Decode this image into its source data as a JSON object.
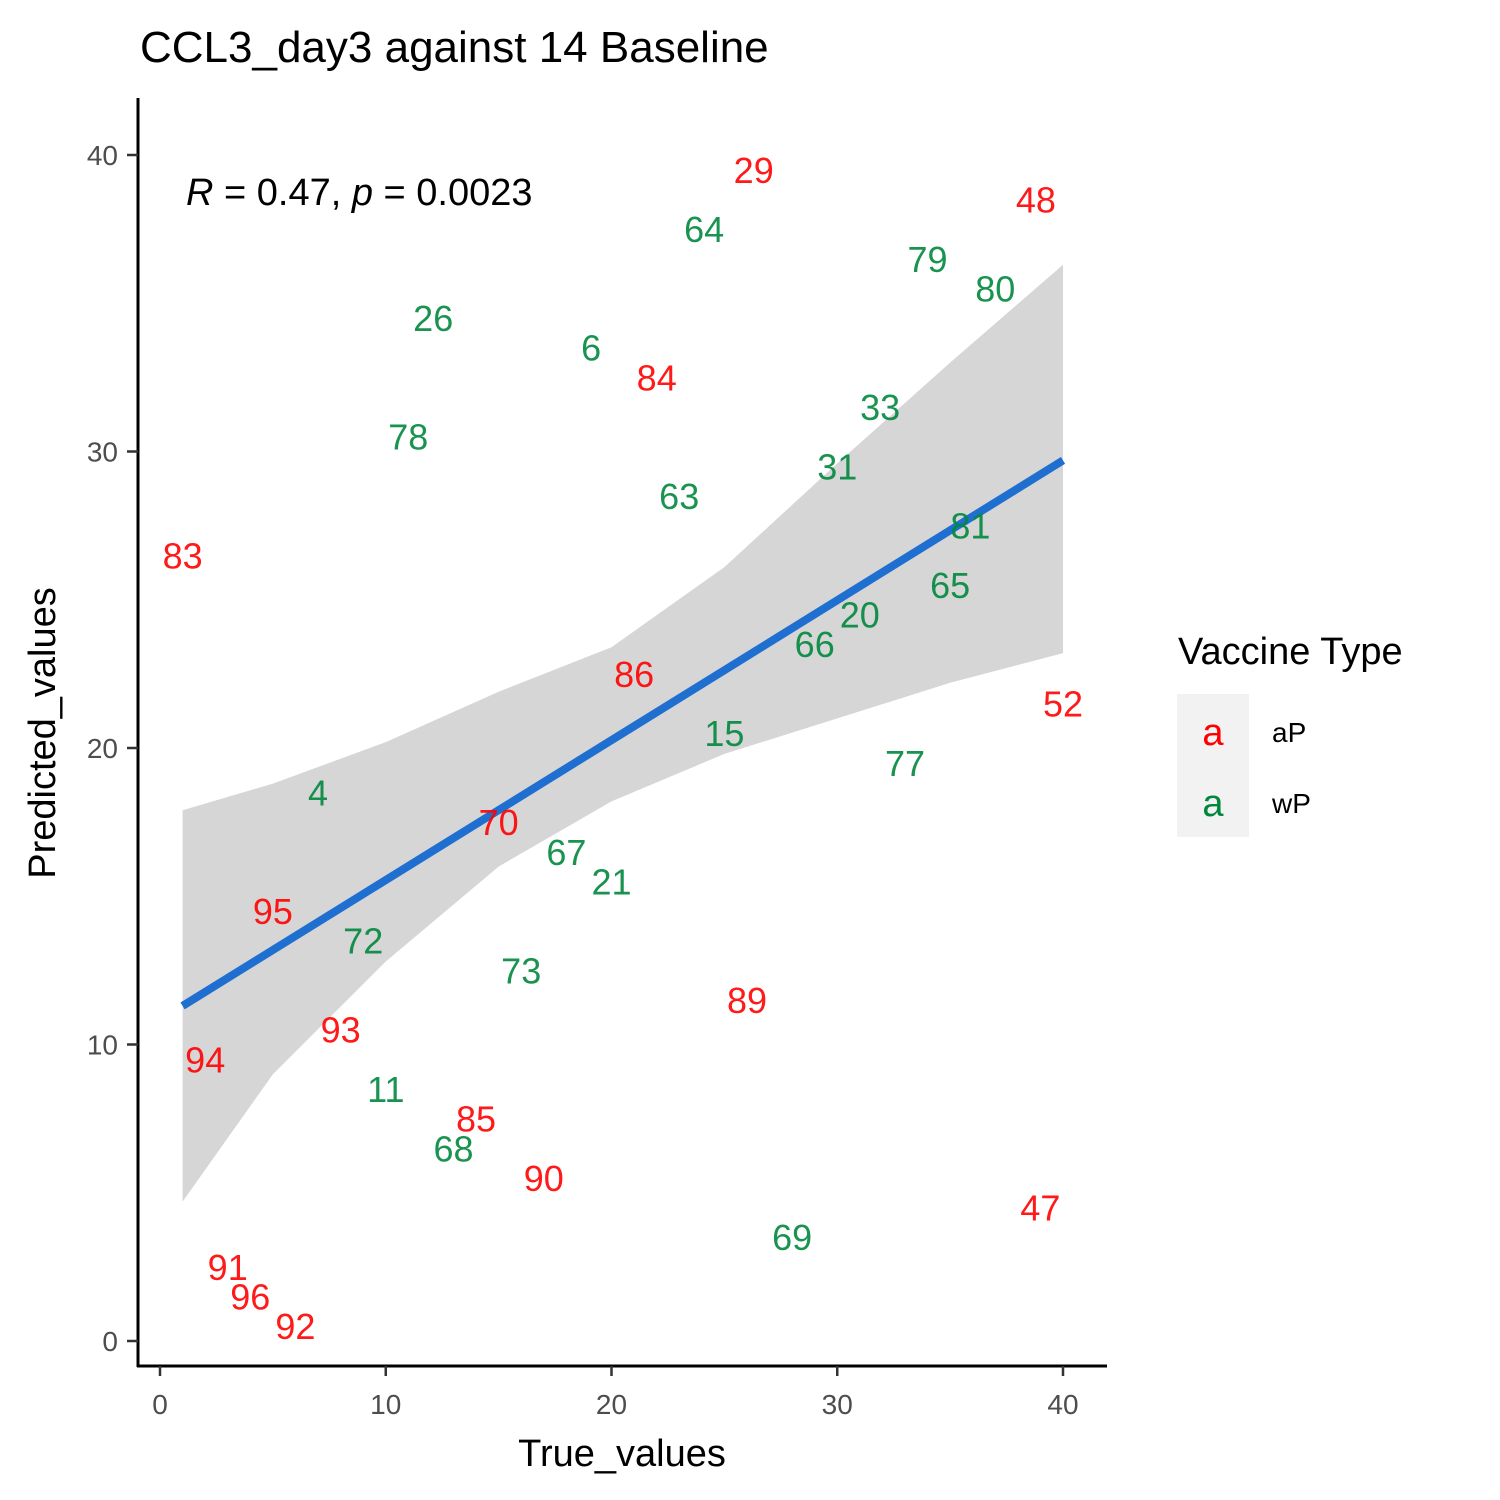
{
  "chart_data": {
    "type": "scatter",
    "title": "CCL3_day3 against 14 Baseline",
    "xlabel": "True_values",
    "ylabel": "Predicted_values",
    "xlim": [
      -1,
      42
    ],
    "ylim": [
      -1,
      42
    ],
    "xticks": [
      "0",
      "10",
      "20",
      "30",
      "40"
    ],
    "yticks": [
      "0",
      "10",
      "20",
      "30",
      "40"
    ],
    "stat_text": {
      "r_symbol": "R",
      "r_part": " = 0.47, ",
      "p_symbol": "p",
      "p_part": " = 0.0023"
    },
    "legend": {
      "title": "Vaccine Type",
      "position": "right",
      "key_glyph": "a",
      "entries": [
        {
          "label": "aP",
          "color": "#ff0000"
        },
        {
          "label": "wP",
          "color": "#00873c"
        }
      ]
    },
    "series_colors": {
      "aP": "#ff0000",
      "wP": "#00873c"
    },
    "regression": {
      "color": "#1f6fd1",
      "band_color": "#d6d6d6",
      "x": [
        1,
        40
      ],
      "y": [
        11.3,
        29.7
      ],
      "band_lower": [
        [
          1,
          4.7
        ],
        [
          5,
          9.0
        ],
        [
          10,
          12.8
        ],
        [
          15,
          16.0
        ],
        [
          20,
          18.2
        ],
        [
          25,
          19.8
        ],
        [
          30,
          21.0
        ],
        [
          35,
          22.2
        ],
        [
          40,
          23.2
        ]
      ],
      "band_upper": [
        [
          1,
          17.9
        ],
        [
          5,
          18.8
        ],
        [
          10,
          20.2
        ],
        [
          15,
          21.9
        ],
        [
          20,
          23.4
        ],
        [
          25,
          26.1
        ],
        [
          30,
          29.6
        ],
        [
          35,
          33.0
        ],
        [
          40,
          36.3
        ]
      ]
    },
    "points": [
      {
        "label": "29",
        "group": "aP",
        "x": 26.3,
        "y": 39.5
      },
      {
        "label": "48",
        "group": "aP",
        "x": 38.8,
        "y": 38.5
      },
      {
        "label": "64",
        "group": "wP",
        "x": 24.1,
        "y": 37.5
      },
      {
        "label": "79",
        "group": "wP",
        "x": 34.0,
        "y": 36.5
      },
      {
        "label": "80",
        "group": "wP",
        "x": 37.0,
        "y": 35.5
      },
      {
        "label": "26",
        "group": "wP",
        "x": 12.1,
        "y": 34.5
      },
      {
        "label": "6",
        "group": "wP",
        "x": 19.1,
        "y": 33.5
      },
      {
        "label": "84",
        "group": "aP",
        "x": 22.0,
        "y": 32.5
      },
      {
        "label": "33",
        "group": "wP",
        "x": 31.9,
        "y": 31.5
      },
      {
        "label": "78",
        "group": "wP",
        "x": 11.0,
        "y": 30.5
      },
      {
        "label": "31",
        "group": "wP",
        "x": 30.0,
        "y": 29.5
      },
      {
        "label": "63",
        "group": "wP",
        "x": 23.0,
        "y": 28.5
      },
      {
        "label": "81",
        "group": "wP",
        "x": 35.9,
        "y": 27.5
      },
      {
        "label": "83",
        "group": "aP",
        "x": 1.0,
        "y": 26.5
      },
      {
        "label": "65",
        "group": "wP",
        "x": 35.0,
        "y": 25.5
      },
      {
        "label": "20",
        "group": "wP",
        "x": 31.0,
        "y": 24.5
      },
      {
        "label": "66",
        "group": "wP",
        "x": 29.0,
        "y": 23.5
      },
      {
        "label": "86",
        "group": "aP",
        "x": 21.0,
        "y": 22.5
      },
      {
        "label": "52",
        "group": "aP",
        "x": 40.0,
        "y": 21.5
      },
      {
        "label": "15",
        "group": "wP",
        "x": 25.0,
        "y": 20.5
      },
      {
        "label": "77",
        "group": "wP",
        "x": 33.0,
        "y": 19.5
      },
      {
        "label": "4",
        "group": "wP",
        "x": 7.0,
        "y": 18.5
      },
      {
        "label": "70",
        "group": "aP",
        "x": 15.0,
        "y": 17.5
      },
      {
        "label": "67",
        "group": "wP",
        "x": 18.0,
        "y": 16.5
      },
      {
        "label": "21",
        "group": "wP",
        "x": 20.0,
        "y": 15.5
      },
      {
        "label": "95",
        "group": "aP",
        "x": 5.0,
        "y": 14.5
      },
      {
        "label": "72",
        "group": "wP",
        "x": 9.0,
        "y": 13.5
      },
      {
        "label": "73",
        "group": "wP",
        "x": 16.0,
        "y": 12.5
      },
      {
        "label": "89",
        "group": "aP",
        "x": 26.0,
        "y": 11.5
      },
      {
        "label": "93",
        "group": "aP",
        "x": 8.0,
        "y": 10.5
      },
      {
        "label": "94",
        "group": "aP",
        "x": 2.0,
        "y": 9.5
      },
      {
        "label": "11",
        "group": "wP",
        "x": 10.0,
        "y": 8.5
      },
      {
        "label": "85",
        "group": "aP",
        "x": 14.0,
        "y": 7.5
      },
      {
        "label": "68",
        "group": "wP",
        "x": 13.0,
        "y": 6.5
      },
      {
        "label": "90",
        "group": "aP",
        "x": 17.0,
        "y": 5.5
      },
      {
        "label": "47",
        "group": "aP",
        "x": 39.0,
        "y": 4.5
      },
      {
        "label": "69",
        "group": "wP",
        "x": 28.0,
        "y": 3.5
      },
      {
        "label": "91",
        "group": "aP",
        "x": 3.0,
        "y": 2.5
      },
      {
        "label": "96",
        "group": "aP",
        "x": 4.0,
        "y": 1.5
      },
      {
        "label": "92",
        "group": "aP",
        "x": 6.0,
        "y": 0.5
      }
    ]
  }
}
